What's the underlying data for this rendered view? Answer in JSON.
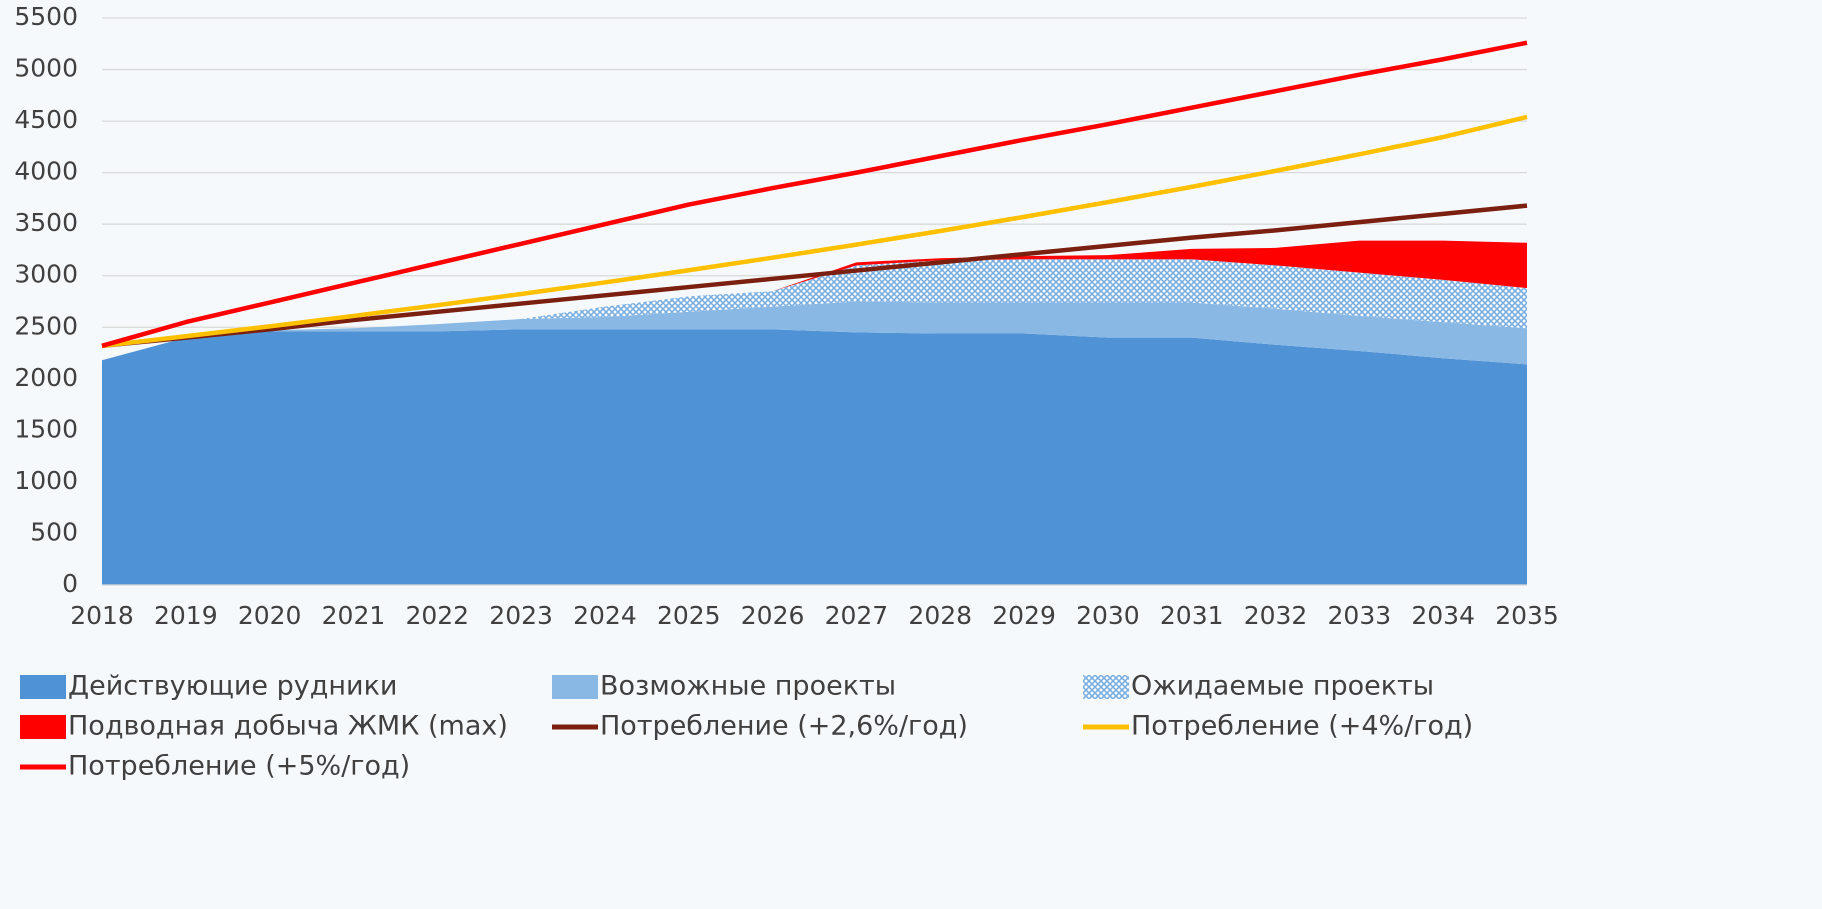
{
  "chart_data": {
    "type": "stacked_area_line",
    "x": [
      2018,
      2019,
      2020,
      2021,
      2022,
      2023,
      2024,
      2025,
      2026,
      2027,
      2028,
      2029,
      2030,
      2031,
      2032,
      2033,
      2034,
      2035
    ],
    "xlim": [
      2018,
      2035
    ],
    "xticks": [
      2018,
      2019,
      2020,
      2021,
      2022,
      2023,
      2024,
      2025,
      2026,
      2027,
      2028,
      2029,
      2030,
      2031,
      2032,
      2033,
      2034,
      2035
    ],
    "ylim": [
      0,
      5500
    ],
    "yticks": [
      0,
      500,
      1000,
      1500,
      2000,
      2500,
      3000,
      3500,
      4000,
      4500,
      5000,
      5500
    ],
    "grid": true,
    "legend": "bottom",
    "series": [
      {
        "name": "Действующие рудники",
        "kind": "area",
        "color": "#4f93d6",
        "values": [
          2180,
          2400,
          2460,
          2460,
          2460,
          2480,
          2480,
          2480,
          2480,
          2450,
          2440,
          2440,
          2400,
          2400,
          2330,
          2270,
          2200,
          2140
        ]
      },
      {
        "name": "Возможные проекты",
        "kind": "area",
        "color": "#8ab8e4",
        "values": [
          0,
          0,
          10,
          30,
          70,
          100,
          120,
          170,
          220,
          300,
          300,
          300,
          340,
          340,
          350,
          340,
          350,
          350
        ]
      },
      {
        "name": "Ожидаемые проекты",
        "kind": "area",
        "color": "#7aaee0",
        "hatch": true,
        "values": [
          0,
          0,
          0,
          0,
          0,
          0,
          100,
          150,
          150,
          350,
          410,
          420,
          420,
          420,
          420,
          420,
          410,
          390
        ]
      },
      {
        "name": "Подводная добыча ЖМК (max)",
        "kind": "area",
        "color": "#ff0000",
        "values": [
          0,
          0,
          0,
          0,
          0,
          0,
          0,
          0,
          0,
          30,
          20,
          30,
          40,
          100,
          170,
          310,
          380,
          440
        ]
      },
      {
        "name": "Потребление (+2,6%/год)",
        "kind": "line",
        "color": "#7b2010",
        "values": [
          2320,
          2400,
          2480,
          2570,
          2650,
          2730,
          2810,
          2890,
          2970,
          3050,
          3130,
          3210,
          3290,
          3370,
          3440,
          3520,
          3600,
          3680
        ]
      },
      {
        "name": "Потребление (+4%/год)",
        "kind": "line",
        "color": "#ffc000",
        "values": [
          2320,
          2413,
          2509,
          2610,
          2714,
          2823,
          2935,
          3053,
          3175,
          3302,
          3434,
          3571,
          3714,
          3862,
          4017,
          4178,
          4345,
          4540
        ]
      },
      {
        "name": "Потребление (+5%/год)",
        "kind": "line",
        "color": "#ff0000",
        "values": [
          2320,
          2550,
          2740,
          2930,
          3120,
          3310,
          3500,
          3690,
          3850,
          4000,
          4160,
          4320,
          4470,
          4630,
          4790,
          4950,
          5100,
          5260
        ]
      }
    ]
  }
}
